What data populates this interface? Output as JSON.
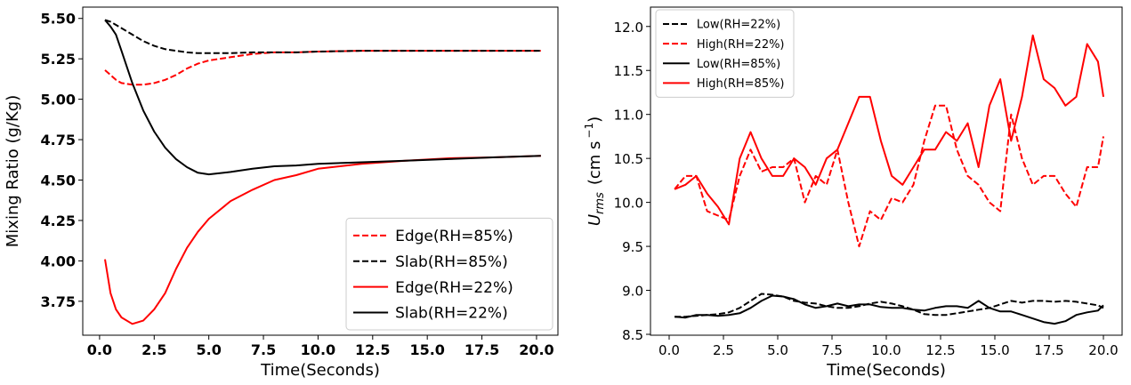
{
  "chart_data": [
    {
      "type": "line",
      "xlabel": "Time(Seconds)",
      "ylabel": "Mixing Ratio (g/Kg)",
      "x": [
        0.25,
        0.5,
        0.75,
        1,
        1.5,
        2,
        2.5,
        3,
        3.5,
        4,
        4.5,
        5,
        6,
        7,
        8,
        9,
        10,
        12,
        14,
        16,
        18,
        20.2
      ],
      "series": [
        {
          "name": "Edge(RH=85%)",
          "color": "#ff0000",
          "dash": true,
          "values": [
            5.18,
            5.15,
            5.12,
            5.1,
            5.09,
            5.09,
            5.1,
            5.12,
            5.15,
            5.19,
            5.22,
            5.24,
            5.26,
            5.28,
            5.29,
            5.29,
            5.295,
            5.3,
            5.3,
            5.3,
            5.3,
            5.3
          ]
        },
        {
          "name": "Slab(RH=85%)",
          "color": "#000000",
          "dash": true,
          "values": [
            5.49,
            5.48,
            5.46,
            5.44,
            5.4,
            5.36,
            5.33,
            5.31,
            5.3,
            5.29,
            5.285,
            5.285,
            5.285,
            5.29,
            5.29,
            5.29,
            5.295,
            5.3,
            5.3,
            5.3,
            5.3,
            5.3
          ]
        },
        {
          "name": "Edge(RH=22%)",
          "color": "#ff0000",
          "dash": false,
          "values": [
            4.01,
            3.8,
            3.7,
            3.65,
            3.61,
            3.63,
            3.7,
            3.8,
            3.95,
            4.08,
            4.18,
            4.26,
            4.37,
            4.44,
            4.5,
            4.53,
            4.57,
            4.6,
            4.62,
            4.635,
            4.64,
            4.65
          ]
        },
        {
          "name": "Slab(RH=22%)",
          "color": "#000000",
          "dash": false,
          "values": [
            5.49,
            5.45,
            5.4,
            5.3,
            5.1,
            4.93,
            4.8,
            4.7,
            4.63,
            4.58,
            4.545,
            4.535,
            4.55,
            4.57,
            4.585,
            4.59,
            4.6,
            4.61,
            4.62,
            4.63,
            4.64,
            4.65
          ]
        }
      ],
      "xlim": [
        -0.77,
        20.98
      ],
      "ylim": [
        3.54,
        5.57
      ],
      "xticks": [
        {
          "value": 0,
          "label": "0.0"
        },
        2.5,
        {
          "value": 5,
          "label": "5.0"
        },
        7.5,
        {
          "value": 10,
          "label": "10.0"
        },
        12.5,
        {
          "value": 15,
          "label": "15.0"
        },
        17.5,
        {
          "value": 20,
          "label": "20.0"
        }
      ],
      "yticks": [
        3.75,
        {
          "value": 4,
          "label": "4.00"
        },
        4.25,
        {
          "value": 4.5,
          "label": "4.50"
        },
        4.75,
        {
          "value": 5,
          "label": "5.00"
        },
        5.25,
        {
          "value": 5.5,
          "label": "5.50"
        }
      ],
      "legend": "lower right"
    },
    {
      "type": "line",
      "xlabel": "Time(Seconds)",
      "ylabel": {
        "base": "U",
        "sub": "rms",
        "unit": "(cm s",
        "sup": "−1",
        "close": ")"
      },
      "x": [
        0.25,
        0.75,
        1.25,
        1.75,
        2.25,
        2.75,
        3.25,
        3.75,
        4.25,
        4.75,
        5.25,
        5.75,
        6.25,
        6.75,
        7.25,
        7.75,
        8.25,
        8.75,
        9.25,
        9.75,
        10.25,
        10.75,
        11.25,
        11.75,
        12.25,
        12.75,
        13.25,
        13.75,
        14.25,
        14.75,
        15.25,
        15.75,
        16.25,
        16.75,
        17.25,
        17.75,
        18.25,
        18.75,
        19.25,
        19.75,
        20.0
      ],
      "series": [
        {
          "name": "Low(RH=22%)",
          "color": "#000000",
          "dash": true,
          "values": [
            8.7,
            8.7,
            8.71,
            8.72,
            8.73,
            8.75,
            8.8,
            8.88,
            8.96,
            8.95,
            8.93,
            8.88,
            8.86,
            8.85,
            8.82,
            8.8,
            8.8,
            8.82,
            8.85,
            8.87,
            8.85,
            8.82,
            8.78,
            8.73,
            8.72,
            8.72,
            8.74,
            8.76,
            8.78,
            8.8,
            8.84,
            8.88,
            8.86,
            8.88,
            8.88,
            8.87,
            8.88,
            8.87,
            8.85,
            8.83,
            8.8
          ]
        },
        {
          "name": "High(RH=22%)",
          "color": "#ff0000",
          "dash": true,
          "values": [
            10.15,
            10.3,
            10.3,
            9.9,
            9.85,
            9.8,
            10.3,
            10.6,
            10.35,
            10.4,
            10.4,
            10.5,
            10.0,
            10.3,
            10.2,
            10.6,
            10.0,
            9.5,
            9.9,
            9.8,
            10.05,
            10.0,
            10.2,
            10.7,
            11.1,
            11.1,
            10.6,
            10.3,
            10.2,
            10.0,
            9.9,
            11.0,
            10.5,
            10.2,
            10.3,
            10.3,
            10.1,
            9.95,
            10.4,
            10.4,
            10.75
          ]
        },
        {
          "name": "Low(RH=85%)",
          "color": "#000000",
          "dash": false,
          "values": [
            8.7,
            8.69,
            8.72,
            8.72,
            8.71,
            8.72,
            8.74,
            8.8,
            8.88,
            8.94,
            8.93,
            8.9,
            8.84,
            8.8,
            8.82,
            8.85,
            8.82,
            8.84,
            8.84,
            8.81,
            8.8,
            8.8,
            8.78,
            8.77,
            8.8,
            8.82,
            8.82,
            8.8,
            8.88,
            8.8,
            8.76,
            8.76,
            8.72,
            8.68,
            8.64,
            8.62,
            8.65,
            8.72,
            8.75,
            8.77,
            8.83
          ]
        },
        {
          "name": "High(RH=85%)",
          "color": "#ff0000",
          "dash": false,
          "values": [
            10.15,
            10.2,
            10.3,
            10.1,
            9.95,
            9.75,
            10.5,
            10.8,
            10.5,
            10.3,
            10.3,
            10.5,
            10.4,
            10.2,
            10.5,
            10.6,
            10.9,
            11.2,
            11.2,
            10.7,
            10.3,
            10.2,
            10.4,
            10.6,
            10.6,
            10.8,
            10.7,
            10.9,
            10.4,
            11.1,
            11.4,
            10.7,
            11.2,
            11.9,
            11.4,
            11.3,
            11.1,
            11.2,
            11.8,
            11.6,
            11.2
          ]
        }
      ],
      "xlim": [
        -0.86,
        20.86
      ],
      "ylim": [
        8.49,
        12.22
      ],
      "xticks": [
        {
          "value": 0,
          "label": "0.0"
        },
        2.5,
        {
          "value": 5,
          "label": "5.0"
        },
        7.5,
        {
          "value": 10,
          "label": "10.0"
        },
        12.5,
        {
          "value": 15,
          "label": "15.0"
        },
        17.5,
        {
          "value": 20,
          "label": "20.0"
        }
      ],
      "yticks": [
        8.5,
        {
          "value": 9,
          "label": "9.0"
        },
        9.5,
        {
          "value": 10,
          "label": "10.0"
        },
        10.5,
        {
          "value": 11,
          "label": "11.0"
        },
        11.5,
        {
          "value": 12,
          "label": "12.0"
        }
      ],
      "legend": "upper left"
    }
  ]
}
